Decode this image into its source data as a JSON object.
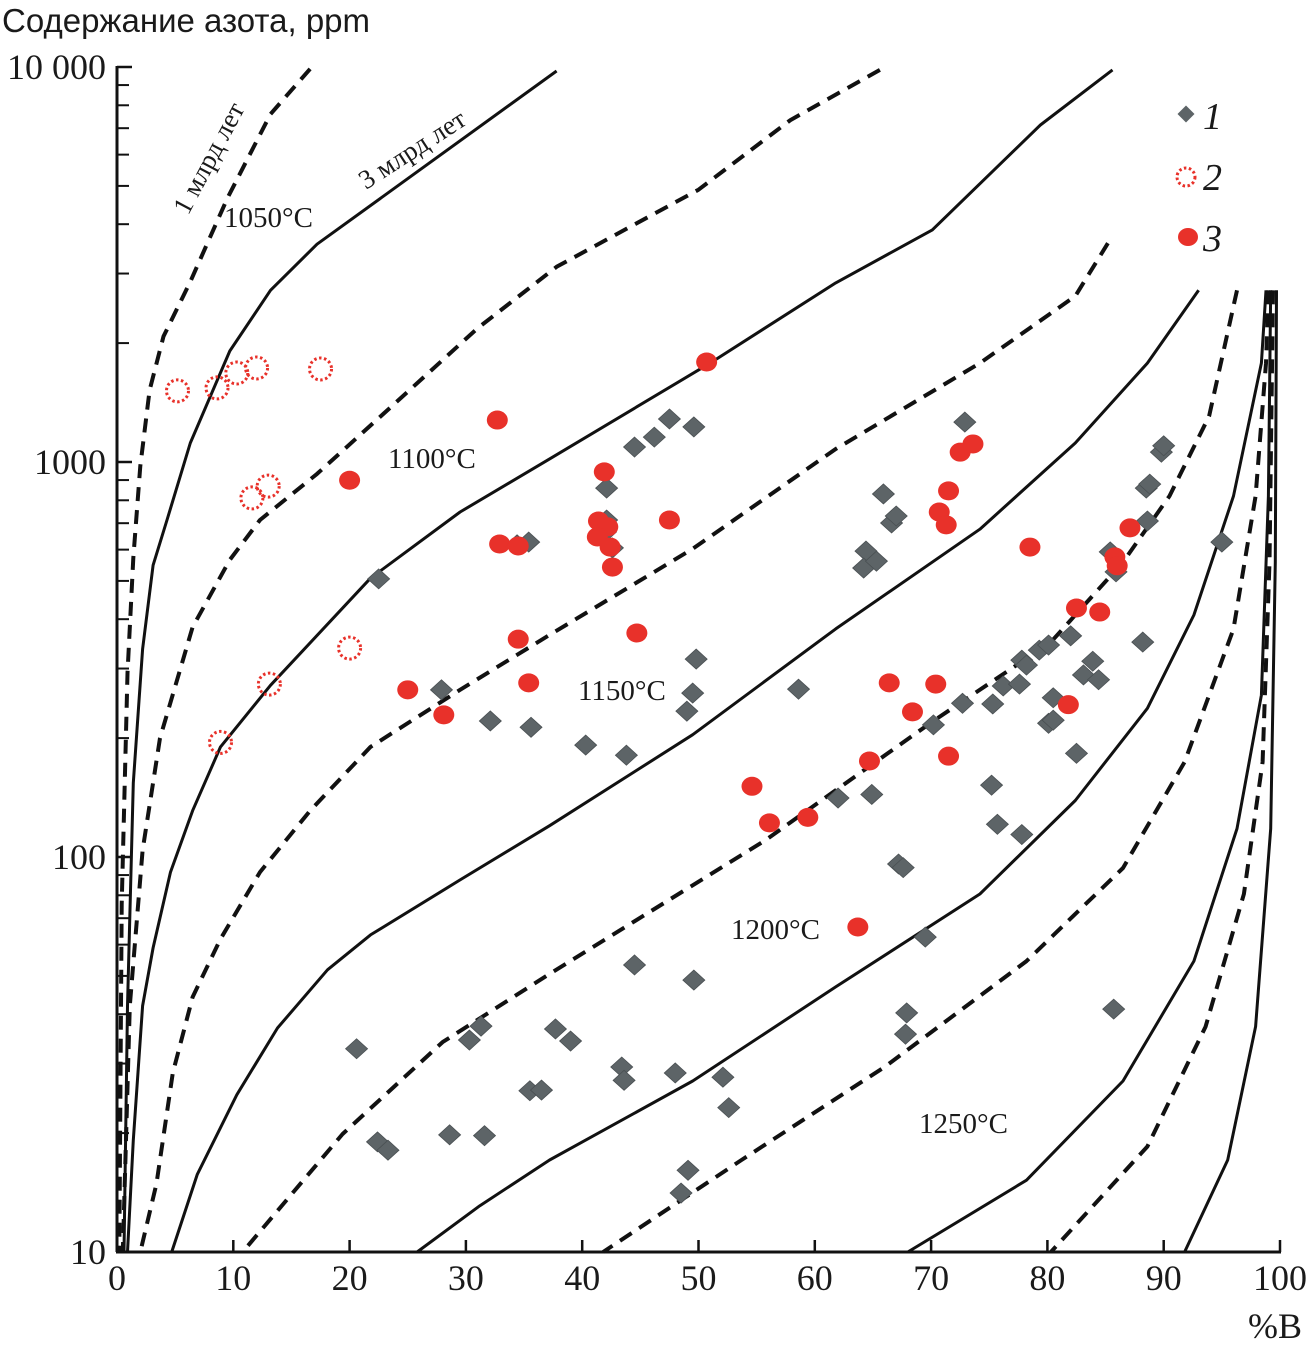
{
  "chart_data": {
    "type": "scatter",
    "ylabel": "Содержание азота, ppm",
    "xlabel": "%B",
    "xlim": [
      0,
      100
    ],
    "ylim": [
      10,
      10000
    ],
    "yscale": "log",
    "grid": false,
    "legend_placement": "top-right",
    "x_ticks": [
      0,
      10,
      20,
      30,
      40,
      50,
      60,
      70,
      80,
      90,
      100
    ],
    "x_tick_labels": [
      "0",
      "10",
      "20",
      "30",
      "40",
      "50",
      "60",
      "70",
      "80",
      "90",
      "100"
    ],
    "y_ticks": [
      10,
      100,
      1000,
      10000
    ],
    "y_tick_labels": [
      "10",
      "100",
      "1000",
      "10 000"
    ],
    "legend": [
      {
        "label": "1",
        "marker": "diamond"
      },
      {
        "label": "2",
        "marker": "open-dotted-circle"
      },
      {
        "label": "3",
        "marker": "filled-circle"
      }
    ],
    "colors": {
      "series1": "#5d6467",
      "series2": "#e8312a",
      "series3": "#e8312a",
      "curve": "#111111"
    },
    "annotations": {
      "age_1": "1 млрд лет",
      "age_3": "3 млрд лет",
      "t1050": "1050°C",
      "t1100": "1100°C",
      "t1150": "1150°C",
      "t1200": "1200°C",
      "t1250": "1250°C"
    },
    "series": [
      {
        "name": "1",
        "marker": "diamond",
        "points": [
          [
            22.5,
            506
          ],
          [
            27.9,
            265
          ],
          [
            32.1,
            221
          ],
          [
            35.6,
            213
          ],
          [
            40.3,
            192
          ],
          [
            43.8,
            181
          ],
          [
            35.4,
            627
          ],
          [
            34.4,
            617
          ],
          [
            42.1,
            859
          ],
          [
            42.1,
            713
          ],
          [
            42.6,
            606
          ],
          [
            42.0,
            665
          ],
          [
            44.5,
            1091
          ],
          [
            46.2,
            1156
          ],
          [
            47.5,
            1285
          ],
          [
            49.6,
            1227
          ],
          [
            49.8,
            317
          ],
          [
            49.5,
            260
          ],
          [
            49.0,
            234
          ],
          [
            58.6,
            266
          ],
          [
            64.4,
            595
          ],
          [
            64.2,
            539
          ],
          [
            65.3,
            561
          ],
          [
            65.9,
            830
          ],
          [
            66.6,
            701
          ],
          [
            67.0,
            730
          ],
          [
            72.9,
            1262
          ],
          [
            72.7,
            245
          ],
          [
            70.2,
            216
          ],
          [
            62.0,
            141
          ],
          [
            64.9,
            144
          ],
          [
            67.2,
            96
          ],
          [
            67.6,
            94
          ],
          [
            69.5,
            62.7
          ],
          [
            75.3,
            244
          ],
          [
            76.2,
            271
          ],
          [
            77.6,
            274
          ],
          [
            77.8,
            315
          ],
          [
            78.2,
            306
          ],
          [
            79.3,
            334
          ],
          [
            80.1,
            344
          ],
          [
            82.0,
            363
          ],
          [
            80.5,
            253
          ],
          [
            80.1,
            218
          ],
          [
            80.5,
            222
          ],
          [
            83.1,
            289
          ],
          [
            83.9,
            313
          ],
          [
            84.4,
            281
          ],
          [
            82.5,
            183
          ],
          [
            75.2,
            152
          ],
          [
            75.7,
            121
          ],
          [
            77.8,
            114
          ],
          [
            88.2,
            350
          ],
          [
            85.4,
            592
          ],
          [
            85.9,
            527
          ],
          [
            88.5,
            859
          ],
          [
            88.8,
            879
          ],
          [
            88.6,
            709
          ],
          [
            89.8,
            1059
          ],
          [
            90.0,
            1099
          ],
          [
            95.0,
            627
          ],
          [
            20.6,
            32.7
          ],
          [
            30.3,
            34.4
          ],
          [
            31.3,
            37.3
          ],
          [
            37.7,
            36.7
          ],
          [
            39.0,
            34.2
          ],
          [
            44.5,
            53.3
          ],
          [
            49.6,
            48.8
          ],
          [
            35.5,
            25.6
          ],
          [
            36.5,
            25.7
          ],
          [
            43.4,
            29.4
          ],
          [
            43.6,
            27.2
          ],
          [
            48.0,
            28.4
          ],
          [
            52.1,
            27.7
          ],
          [
            52.6,
            23.2
          ],
          [
            22.4,
            19.0
          ],
          [
            23.3,
            18.1
          ],
          [
            28.6,
            19.8
          ],
          [
            31.6,
            19.7
          ],
          [
            49.1,
            16.1
          ],
          [
            48.5,
            14.1
          ],
          [
            67.9,
            40.3
          ],
          [
            67.8,
            35.6
          ],
          [
            85.7,
            41.2
          ]
        ]
      },
      {
        "name": "2",
        "marker": "open-dotted-circle",
        "points": [
          [
            5.2,
            1514
          ],
          [
            8.6,
            1540
          ],
          [
            10.3,
            1680
          ],
          [
            12.0,
            1730
          ],
          [
            17.5,
            1720
          ],
          [
            11.6,
            811
          ],
          [
            13.0,
            869
          ],
          [
            20.0,
            338
          ],
          [
            13.1,
            274
          ],
          [
            8.9,
            195
          ]
        ]
      },
      {
        "name": "3",
        "marker": "filled-circle",
        "points": [
          [
            50.7,
            1791
          ],
          [
            32.7,
            1277
          ],
          [
            20.0,
            899
          ],
          [
            41.9,
            944
          ],
          [
            41.4,
            709
          ],
          [
            42.2,
            685
          ],
          [
            41.3,
            646
          ],
          [
            42.4,
            609
          ],
          [
            47.5,
            713
          ],
          [
            32.9,
            620
          ],
          [
            34.5,
            613
          ],
          [
            42.6,
            542
          ],
          [
            34.5,
            356
          ],
          [
            44.7,
            369
          ],
          [
            25.0,
            265
          ],
          [
            35.4,
            276
          ],
          [
            28.1,
            229
          ],
          [
            72.5,
            1059
          ],
          [
            73.6,
            1111
          ],
          [
            71.5,
            845
          ],
          [
            70.7,
            747
          ],
          [
            71.3,
            693
          ],
          [
            78.5,
            609
          ],
          [
            87.1,
            681
          ],
          [
            85.8,
            575
          ],
          [
            86.0,
            546
          ],
          [
            82.5,
            427
          ],
          [
            84.5,
            417
          ],
          [
            66.4,
            276
          ],
          [
            70.4,
            274
          ],
          [
            68.4,
            233
          ],
          [
            81.8,
            243
          ],
          [
            71.5,
            180
          ],
          [
            64.7,
            175
          ],
          [
            54.6,
            151
          ],
          [
            56.1,
            122
          ],
          [
            59.4,
            126
          ],
          [
            63.7,
            66.5
          ]
        ]
      }
    ],
    "curves": [
      {
        "temperature": "1050°C",
        "age": "1 млрд лет",
        "style": "dashed",
        "points": [
          [
            16.6,
            9890
          ],
          [
            13.2,
            7600
          ],
          [
            9.5,
            4660
          ],
          [
            6.3,
            2860
          ],
          [
            4.0,
            2080
          ],
          [
            2.8,
            1520
          ],
          [
            2.0,
            977
          ],
          [
            1.4,
            571
          ],
          [
            0.9,
            292
          ],
          [
            0.4,
            76
          ],
          [
            0.2,
            10
          ]
        ]
      },
      {
        "temperature": "1050°C",
        "age": "3 млрд лет",
        "style": "solid",
        "points": [
          [
            37.8,
            9770
          ],
          [
            17.2,
            3560
          ],
          [
            13.2,
            2720
          ],
          [
            9.7,
            1910
          ],
          [
            6.3,
            1117
          ],
          [
            4.3,
            713
          ],
          [
            3.1,
            548
          ],
          [
            2.2,
            336
          ],
          [
            1.4,
            154
          ],
          [
            0.9,
            42
          ],
          [
            0.6,
            10
          ]
        ]
      },
      {
        "temperature": "1100°C",
        "age": "1 млрд лет",
        "style": "dashed",
        "points": [
          [
            65.6,
            9830
          ],
          [
            57.9,
            7340
          ],
          [
            50.0,
            4890
          ],
          [
            37.8,
            3120
          ],
          [
            31.0,
            2180
          ],
          [
            23.7,
            1390
          ],
          [
            17.2,
            933
          ],
          [
            12.3,
            713
          ],
          [
            9.7,
            565
          ],
          [
            6.5,
            382
          ],
          [
            3.7,
            200
          ],
          [
            2.2,
            104
          ],
          [
            1.1,
            42
          ],
          [
            0.5,
            10
          ]
        ]
      },
      {
        "temperature": "1100°C",
        "age": "3 млрд лет",
        "style": "solid",
        "points": [
          [
            85.6,
            9830
          ],
          [
            79.4,
            7130
          ],
          [
            70.1,
            3870
          ],
          [
            61.8,
            2840
          ],
          [
            51.0,
            1780
          ],
          [
            37.2,
            1018
          ],
          [
            29.5,
            747
          ],
          [
            21.8,
            508
          ],
          [
            13.2,
            272
          ],
          [
            8.9,
            190
          ],
          [
            6.5,
            131
          ],
          [
            4.6,
            91.6
          ],
          [
            3.1,
            58.9
          ],
          [
            2.2,
            42
          ],
          [
            1.4,
            19.2
          ],
          [
            0.9,
            10
          ]
        ]
      },
      {
        "temperature": "1150°C",
        "age": "1 млрд лет",
        "style": "dashed",
        "points": [
          [
            85.2,
            3580
          ],
          [
            82.4,
            2630
          ],
          [
            74.2,
            1780
          ],
          [
            61.8,
            1079
          ],
          [
            49.5,
            603
          ],
          [
            37.2,
            365
          ],
          [
            29.5,
            265
          ],
          [
            21.8,
            190
          ],
          [
            16.6,
            131
          ],
          [
            12.3,
            91.6
          ],
          [
            8.9,
            62
          ],
          [
            6.5,
            44.2
          ],
          [
            4.8,
            28.4
          ],
          [
            3.4,
            14.9
          ],
          [
            2.0,
            10
          ]
        ]
      },
      {
        "temperature": "1150°C",
        "age": "3 млрд лет",
        "style": "solid",
        "points": [
          [
            93.0,
            2720
          ],
          [
            88.6,
            1780
          ],
          [
            82.4,
            1117
          ],
          [
            74.2,
            676
          ],
          [
            61.8,
            378
          ],
          [
            49.5,
            204
          ],
          [
            37.2,
            120
          ],
          [
            29.5,
            87.5
          ],
          [
            21.8,
            63.5
          ],
          [
            18.1,
            51.8
          ],
          [
            13.8,
            36.9
          ],
          [
            10.3,
            25
          ],
          [
            6.9,
            15.7
          ],
          [
            4.7,
            10
          ]
        ]
      },
      {
        "temperature": "1200°C",
        "age": "1 млрд лет",
        "style": "dashed",
        "points": [
          [
            96.3,
            2720
          ],
          [
            93.9,
            1306
          ],
          [
            90.5,
            820
          ],
          [
            86.5,
            558
          ],
          [
            80.3,
            350
          ],
          [
            70.1,
            220
          ],
          [
            55.7,
            110
          ],
          [
            37.2,
            50.6
          ],
          [
            28.0,
            34
          ],
          [
            19.4,
            19.9
          ],
          [
            10.8,
            10
          ]
        ]
      },
      {
        "temperature": "1200°C",
        "age": "3 млрд лет",
        "style": "solid",
        "points": [
          [
            98.8,
            2720
          ],
          [
            98.4,
            1780
          ],
          [
            96.0,
            820
          ],
          [
            92.6,
            410
          ],
          [
            88.6,
            238
          ],
          [
            82.4,
            139
          ],
          [
            74.2,
            80.6
          ],
          [
            61.8,
            46.9
          ],
          [
            49.5,
            27.1
          ],
          [
            37.2,
            17.1
          ],
          [
            31.2,
            13.1
          ],
          [
            25.8,
            10
          ]
        ]
      },
      {
        "temperature": "1250°C",
        "age": "1 млрд лет",
        "style": "dashed",
        "points": [
          [
            99.0,
            2720
          ],
          [
            98.8,
            1780
          ],
          [
            97.9,
            820
          ],
          [
            96.0,
            378
          ],
          [
            91.8,
            174
          ],
          [
            86.5,
            93.8
          ],
          [
            78.2,
            54.5
          ],
          [
            66.0,
            29.4
          ],
          [
            53.7,
            17.1
          ],
          [
            41.8,
            10
          ]
        ]
      },
      {
        "temperature": "1250°C",
        "age": "3 млрд лет",
        "style": "solid",
        "points": [
          [
            99.2,
            2720
          ],
          [
            99.0,
            820
          ],
          [
            98.4,
            257
          ],
          [
            96.3,
            118
          ],
          [
            92.6,
            54.5
          ],
          [
            86.5,
            27.1
          ],
          [
            78.2,
            15.2
          ],
          [
            68.0,
            10
          ]
        ]
      },
      {
        "temperature": "",
        "age": "1 млрд лет",
        "style": "dashed",
        "points": [
          [
            99.4,
            2720
          ],
          [
            99.1,
            558
          ],
          [
            98.5,
            174
          ],
          [
            96.9,
            80.6
          ],
          [
            93.6,
            37.2
          ],
          [
            88.6,
            18.5
          ],
          [
            80.3,
            10
          ]
        ]
      },
      {
        "temperature": "",
        "age": "3 млрд лет",
        "style": "solid",
        "points": [
          [
            99.7,
            2720
          ],
          [
            99.6,
            558
          ],
          [
            99.2,
            118
          ],
          [
            97.9,
            37.2
          ],
          [
            95.5,
            17.1
          ],
          [
            91.8,
            10
          ]
        ]
      }
    ]
  }
}
